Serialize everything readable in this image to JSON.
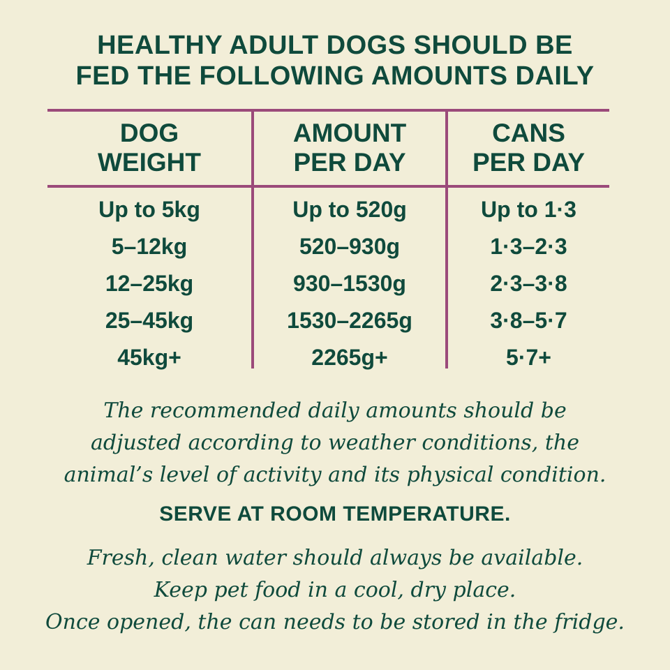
{
  "title": {
    "line1": "HEALTHY ADULT DOGS SHOULD BE",
    "line2": "FED THE FOLLOWING AMOUNTS DAILY"
  },
  "colors": {
    "background": "#f2eed8",
    "text": "#0f4a3c",
    "rule": "#9b4a7a"
  },
  "table": {
    "headers": [
      {
        "line1": "DOG",
        "line2": "WEIGHT"
      },
      {
        "line1": "AMOUNT",
        "line2": "PER DAY"
      },
      {
        "line1": "CANS",
        "line2": "PER DAY"
      }
    ],
    "rows": [
      [
        "Up to 5kg",
        "Up to 520g",
        "Up to 1·3"
      ],
      [
        "5–12kg",
        "520–930g",
        "1·3–2·3"
      ],
      [
        "12–25kg",
        "930–1530g",
        "2·3–3·8"
      ],
      [
        "25–45kg",
        "1530–2265g",
        "3·8–5·7"
      ],
      [
        "45kg+",
        "2265g+",
        "5·7+"
      ]
    ]
  },
  "note": {
    "lines": [
      "The recommended daily amounts should be",
      "adjusted according to weather conditions, the",
      "animal’s level of activity and its physical condition."
    ]
  },
  "serve": "SERVE AT ROOM TEMPERATURE.",
  "storage": {
    "lines": [
      "Fresh, clean water should always be available.",
      "Keep pet food in a cool, dry place.",
      "Once opened, the can needs to be stored in the fridge."
    ]
  }
}
